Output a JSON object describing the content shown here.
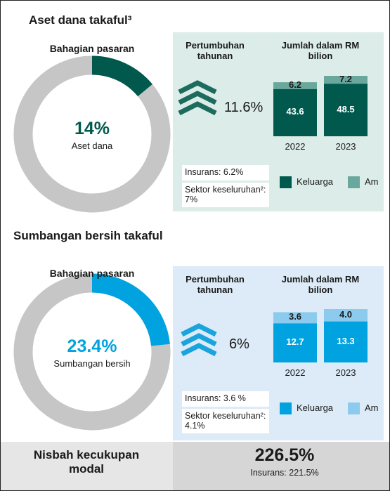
{
  "sections": [
    {
      "title": "Aset  dana takaful³",
      "share": {
        "title": "Bahagian pasaran",
        "value": 14,
        "value_label": "14%",
        "label": "Aset dana",
        "color": "#00594c"
      },
      "growth": {
        "title": "Pertumbuhan tahunan",
        "value": "11.6%"
      },
      "bars": {
        "title": "Jumlah dalam RM bilion",
        "categories": [
          "2022",
          "2023"
        ],
        "series": [
          {
            "name": "Keluarga",
            "color": "#00594c",
            "values": [
              43.6,
              48.5
            ]
          },
          {
            "name": "Am",
            "color": "#6aa79c",
            "values": [
              6.2,
              7.2
            ]
          }
        ]
      },
      "notes": [
        "Insurans: 6.2%",
        "Sektor keseluruhan²: 7%"
      ]
    },
    {
      "title": "Sumbangan bersih takaful",
      "share": {
        "title": "Bahagian pasaran",
        "value": 23.4,
        "value_label": "23.4%",
        "label": "Sumbangan bersih",
        "color": "#00a3e0"
      },
      "growth": {
        "title": "Pertumbuhan tahunan",
        "value": "6%"
      },
      "bars": {
        "title": "Jumlah dalam RM bilion",
        "categories": [
          "2022",
          "2023"
        ],
        "series": [
          {
            "name": "Keluarga",
            "color": "#00a3e0",
            "values": [
              12.7,
              13.3
            ]
          },
          {
            "name": "Am",
            "color": "#8ccbee",
            "values": [
              3.6,
              4.0
            ],
            "value_labels": [
              "3.6",
              "4.0"
            ]
          }
        ]
      },
      "notes": [
        "Insurans: 3.6 %",
        "Sektor keseluruhan²: 4.1%"
      ]
    }
  ],
  "footer": {
    "title": "Nisbah kecukupan modal",
    "value": "226.5%",
    "note": "Insurans: 221.5%"
  }
}
